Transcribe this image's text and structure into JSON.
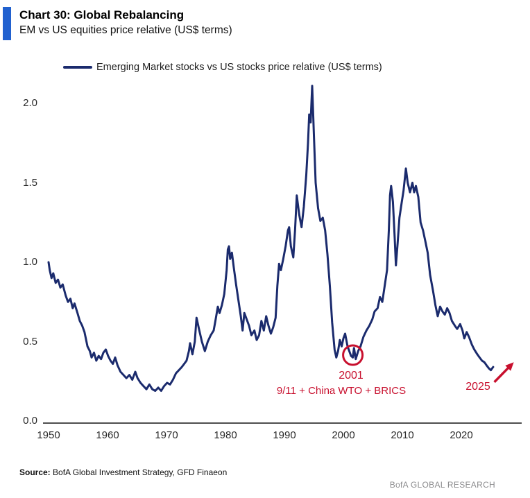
{
  "header": {
    "title": "Chart 30: Global Rebalancing",
    "subtitle": "EM vs US equities price relative (US$ terms)",
    "accent_color": "#2161cf"
  },
  "footer": {
    "source_label": "Source:",
    "source_text": "BofA Global Investment Strategy, GFD Finaeon",
    "brand": "BofA GLOBAL RESEARCH"
  },
  "chart_data": {
    "type": "line",
    "title": "Chart 30: Global Rebalancing",
    "subtitle": "EM vs US equities price relative (US$ terms)",
    "legend_position": "top",
    "grid": false,
    "line_color": "#1b2b6d",
    "annotation_color": "#c8102e",
    "axis_color": "#4d4d4d",
    "x_ticks": [
      1950,
      1960,
      1970,
      1980,
      1990,
      2000,
      2010,
      2020
    ],
    "x_range": [
      1950,
      2030.3
    ],
    "y_ticks": [
      0.0,
      0.5,
      1.0,
      1.5,
      2.0
    ],
    "ylim": [
      0.0,
      2.15
    ],
    "legend": [
      {
        "label": "Emerging Market stocks vs US stocks price relative (US$ terms)",
        "color": "#1b2b6d"
      }
    ],
    "series": [
      {
        "name": "Emerging Market stocks vs US stocks price relative (US$ terms)",
        "points": [
          [
            1950.0,
            1.0
          ],
          [
            1950.2,
            0.95
          ],
          [
            1950.5,
            0.9
          ],
          [
            1950.8,
            0.93
          ],
          [
            1951.2,
            0.87
          ],
          [
            1951.6,
            0.89
          ],
          [
            1952.0,
            0.84
          ],
          [
            1952.4,
            0.86
          ],
          [
            1952.9,
            0.79
          ],
          [
            1953.3,
            0.75
          ],
          [
            1953.7,
            0.77
          ],
          [
            1954.1,
            0.71
          ],
          [
            1954.4,
            0.74
          ],
          [
            1954.9,
            0.68
          ],
          [
            1955.3,
            0.63
          ],
          [
            1955.7,
            0.6
          ],
          [
            1956.1,
            0.56
          ],
          [
            1956.6,
            0.47
          ],
          [
            1957.0,
            0.44
          ],
          [
            1957.3,
            0.4
          ],
          [
            1957.7,
            0.43
          ],
          [
            1958.1,
            0.38
          ],
          [
            1958.5,
            0.41
          ],
          [
            1958.9,
            0.39
          ],
          [
            1959.3,
            0.43
          ],
          [
            1959.7,
            0.45
          ],
          [
            1960.1,
            0.41
          ],
          [
            1960.5,
            0.38
          ],
          [
            1960.9,
            0.36
          ],
          [
            1961.3,
            0.4
          ],
          [
            1961.7,
            0.35
          ],
          [
            1962.2,
            0.31
          ],
          [
            1962.7,
            0.29
          ],
          [
            1963.2,
            0.27
          ],
          [
            1963.7,
            0.29
          ],
          [
            1964.2,
            0.26
          ],
          [
            1964.7,
            0.31
          ],
          [
            1965.1,
            0.27
          ],
          [
            1965.6,
            0.24
          ],
          [
            1966.1,
            0.22
          ],
          [
            1966.6,
            0.2
          ],
          [
            1967.1,
            0.23
          ],
          [
            1967.6,
            0.2
          ],
          [
            1968.1,
            0.19
          ],
          [
            1968.6,
            0.21
          ],
          [
            1969.1,
            0.19
          ],
          [
            1969.6,
            0.22
          ],
          [
            1970.1,
            0.24
          ],
          [
            1970.6,
            0.23
          ],
          [
            1971.1,
            0.26
          ],
          [
            1971.6,
            0.3
          ],
          [
            1972.1,
            0.32
          ],
          [
            1972.6,
            0.34
          ],
          [
            1973.0,
            0.36
          ],
          [
            1973.4,
            0.38
          ],
          [
            1973.8,
            0.44
          ],
          [
            1974.0,
            0.49
          ],
          [
            1974.4,
            0.42
          ],
          [
            1974.8,
            0.5
          ],
          [
            1975.1,
            0.65
          ],
          [
            1975.5,
            0.58
          ],
          [
            1976.0,
            0.5
          ],
          [
            1976.5,
            0.44
          ],
          [
            1977.0,
            0.5
          ],
          [
            1977.5,
            0.54
          ],
          [
            1978.0,
            0.57
          ],
          [
            1978.3,
            0.63
          ],
          [
            1978.7,
            0.72
          ],
          [
            1979.0,
            0.68
          ],
          [
            1979.4,
            0.73
          ],
          [
            1979.8,
            0.8
          ],
          [
            1980.2,
            0.95
          ],
          [
            1980.4,
            1.08
          ],
          [
            1980.6,
            1.1
          ],
          [
            1980.8,
            1.02
          ],
          [
            1981.1,
            1.06
          ],
          [
            1981.4,
            0.97
          ],
          [
            1981.8,
            0.86
          ],
          [
            1982.2,
            0.76
          ],
          [
            1982.6,
            0.66
          ],
          [
            1982.9,
            0.57
          ],
          [
            1983.2,
            0.68
          ],
          [
            1983.6,
            0.64
          ],
          [
            1984.0,
            0.6
          ],
          [
            1984.4,
            0.54
          ],
          [
            1984.9,
            0.57
          ],
          [
            1985.3,
            0.51
          ],
          [
            1985.7,
            0.54
          ],
          [
            1986.1,
            0.63
          ],
          [
            1986.5,
            0.57
          ],
          [
            1986.9,
            0.66
          ],
          [
            1987.3,
            0.6
          ],
          [
            1987.7,
            0.55
          ],
          [
            1988.1,
            0.59
          ],
          [
            1988.5,
            0.65
          ],
          [
            1988.8,
            0.85
          ],
          [
            1989.1,
            0.99
          ],
          [
            1989.4,
            0.95
          ],
          [
            1989.8,
            1.02
          ],
          [
            1990.2,
            1.1
          ],
          [
            1990.6,
            1.2
          ],
          [
            1990.8,
            1.22
          ],
          [
            1991.1,
            1.1
          ],
          [
            1991.5,
            1.03
          ],
          [
            1991.8,
            1.2
          ],
          [
            1992.1,
            1.42
          ],
          [
            1992.5,
            1.3
          ],
          [
            1992.9,
            1.22
          ],
          [
            1993.3,
            1.35
          ],
          [
            1993.7,
            1.55
          ],
          [
            1994.0,
            1.75
          ],
          [
            1994.2,
            1.93
          ],
          [
            1994.45,
            1.88
          ],
          [
            1994.7,
            2.11
          ],
          [
            1995.0,
            1.8
          ],
          [
            1995.3,
            1.5
          ],
          [
            1995.7,
            1.34
          ],
          [
            1996.1,
            1.26
          ],
          [
            1996.5,
            1.28
          ],
          [
            1996.9,
            1.2
          ],
          [
            1997.3,
            1.05
          ],
          [
            1997.7,
            0.85
          ],
          [
            1998.1,
            0.62
          ],
          [
            1998.5,
            0.45
          ],
          [
            1998.8,
            0.4
          ],
          [
            1999.1,
            0.44
          ],
          [
            1999.4,
            0.51
          ],
          [
            1999.7,
            0.47
          ],
          [
            2000.0,
            0.52
          ],
          [
            2000.3,
            0.55
          ],
          [
            2000.7,
            0.47
          ],
          [
            2001.0,
            0.44
          ],
          [
            2001.3,
            0.41
          ],
          [
            2001.6,
            0.4
          ],
          [
            2001.8,
            0.46
          ],
          [
            2002.1,
            0.39
          ],
          [
            2002.5,
            0.44
          ],
          [
            2002.9,
            0.47
          ],
          [
            2003.4,
            0.53
          ],
          [
            2003.9,
            0.57
          ],
          [
            2004.4,
            0.6
          ],
          [
            2004.9,
            0.64
          ],
          [
            2005.3,
            0.69
          ],
          [
            2005.8,
            0.71
          ],
          [
            2006.2,
            0.78
          ],
          [
            2006.6,
            0.75
          ],
          [
            2007.0,
            0.85
          ],
          [
            2007.4,
            0.95
          ],
          [
            2007.7,
            1.2
          ],
          [
            2007.9,
            1.42
          ],
          [
            2008.1,
            1.48
          ],
          [
            2008.4,
            1.38
          ],
          [
            2008.7,
            1.15
          ],
          [
            2008.9,
            0.98
          ],
          [
            2009.2,
            1.12
          ],
          [
            2009.5,
            1.28
          ],
          [
            2009.9,
            1.38
          ],
          [
            2010.2,
            1.45
          ],
          [
            2010.6,
            1.59
          ],
          [
            2010.9,
            1.5
          ],
          [
            2011.3,
            1.44
          ],
          [
            2011.7,
            1.5
          ],
          [
            2012.0,
            1.44
          ],
          [
            2012.3,
            1.48
          ],
          [
            2012.7,
            1.41
          ],
          [
            2013.1,
            1.25
          ],
          [
            2013.5,
            1.2
          ],
          [
            2013.9,
            1.13
          ],
          [
            2014.3,
            1.06
          ],
          [
            2014.7,
            0.92
          ],
          [
            2015.2,
            0.82
          ],
          [
            2015.6,
            0.73
          ],
          [
            2016.0,
            0.66
          ],
          [
            2016.4,
            0.72
          ],
          [
            2016.8,
            0.69
          ],
          [
            2017.2,
            0.67
          ],
          [
            2017.6,
            0.71
          ],
          [
            2018.0,
            0.68
          ],
          [
            2018.4,
            0.63
          ],
          [
            2018.9,
            0.6
          ],
          [
            2019.3,
            0.58
          ],
          [
            2019.8,
            0.61
          ],
          [
            2020.2,
            0.57
          ],
          [
            2020.5,
            0.52
          ],
          [
            2020.9,
            0.56
          ],
          [
            2021.3,
            0.53
          ],
          [
            2021.8,
            0.48
          ],
          [
            2022.2,
            0.45
          ],
          [
            2022.7,
            0.42
          ],
          [
            2023.1,
            0.4
          ],
          [
            2023.5,
            0.38
          ],
          [
            2023.9,
            0.37
          ],
          [
            2024.3,
            0.35
          ],
          [
            2024.7,
            0.33
          ],
          [
            2025.0,
            0.32
          ],
          [
            2025.4,
            0.34
          ]
        ]
      }
    ],
    "annotations": [
      {
        "type": "circle",
        "year": 2001.6,
        "value": 0.415,
        "label": "2001",
        "sublabel": "9/11 + China WTO + BRICS"
      },
      {
        "type": "arrow",
        "label": "2025",
        "from_year": 2025.6,
        "from_value": 0.245,
        "to_year": 2028.9,
        "to_value": 0.37
      }
    ]
  }
}
